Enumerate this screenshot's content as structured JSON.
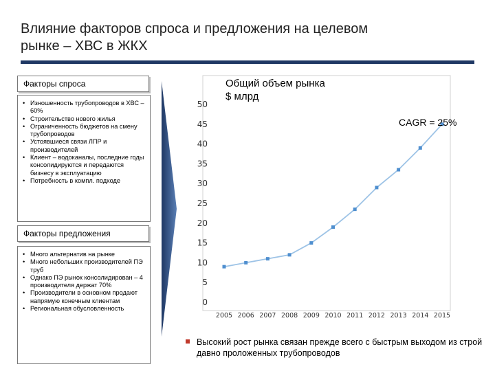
{
  "header": {
    "title_line1": "Влияние факторов спроса и предложения на целевом",
    "title_line2": "рынке – ХВС в ЖКХ"
  },
  "demand": {
    "heading": "Факторы спроса",
    "items": [
      "Изношенность трубопроводов в ХВС – 60%",
      "Строительство нового жилья",
      "Ограниченность бюджетов на смену трубопроводов",
      "Устоявшиеся связи ЛПР и производителей",
      "Клиент – водоканалы, последние годы консолидируются и передаются бизнесу в эксплуатацию",
      "Потребность в компл. подходе"
    ]
  },
  "supply": {
    "heading": "Факторы предложения",
    "items": [
      "Много альтернатив на рынке",
      "Много небольших производителей ПЭ труб",
      "Однако ПЭ рынок консолидирован – 4 производителя держат 70%",
      "Производители в основном продают напрямую конечным клиентам",
      "Региональная обусловленность"
    ]
  },
  "chart_data": {
    "type": "line",
    "title": "Общий объем рынка $ млрд",
    "annotation": "CAGR = 25%",
    "x": [
      "2005",
      "2006",
      "2007",
      "2008",
      "2009",
      "2010",
      "2011",
      "2012",
      "2013",
      "2014",
      "2015"
    ],
    "series": [
      {
        "values": [
          9,
          10,
          11,
          12,
          15,
          19,
          23.5,
          29,
          33.5,
          39,
          45
        ]
      }
    ],
    "ylim": [
      0,
      50
    ],
    "yticks": [
      0,
      5,
      10,
      15,
      20,
      25,
      30,
      35,
      40,
      45,
      50
    ],
    "grid": false,
    "colors": {
      "line": "#9dc3e6",
      "marker": "#4f8fcf"
    }
  },
  "note": "Высокий рост рынка связан прежде всего с быстрым выходом из строй давно проложенных трубопроводов",
  "colors": {
    "title_rule": "#1f3864",
    "arrow": "#1f3864",
    "bullet": "#c0392b"
  }
}
